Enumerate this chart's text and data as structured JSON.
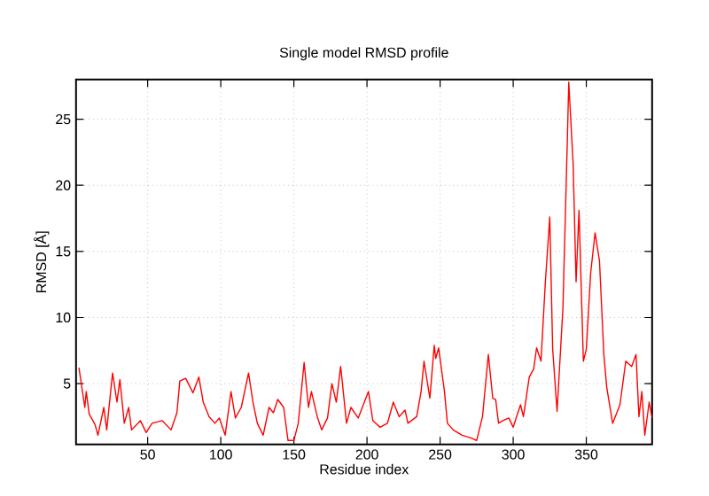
{
  "chart_data": {
    "type": "line",
    "title": "Single model RMSD profile",
    "xlabel": "Residue index",
    "ylabel": "RMSD [Å]",
    "xlim": [
      1,
      395
    ],
    "ylim": [
      0.4,
      28
    ],
    "xticks": [
      50,
      100,
      150,
      200,
      250,
      300,
      350
    ],
    "yticks": [
      5,
      10,
      15,
      20,
      25
    ],
    "grid": true,
    "series": [
      {
        "color": "#ff0000",
        "x": [
          3,
          7,
          8,
          10,
          14,
          16,
          20,
          22,
          26,
          29,
          31,
          34,
          37,
          39,
          45,
          49,
          53,
          60,
          66,
          70,
          72,
          76,
          81,
          85,
          88,
          92,
          96,
          99,
          103,
          107,
          110,
          114,
          119,
          122,
          125,
          129,
          133,
          136,
          139,
          143,
          146,
          150,
          153,
          157,
          160,
          162,
          166,
          169,
          173,
          176,
          179,
          182,
          186,
          189,
          194,
          201,
          204,
          209,
          214,
          218,
          222,
          226,
          228,
          234,
          237,
          239,
          243,
          246,
          247,
          249,
          253,
          255,
          259,
          265,
          271,
          275,
          279,
          283,
          286,
          288,
          290,
          293,
          297,
          300,
          302,
          305,
          307,
          311,
          314,
          316,
          319,
          322,
          325,
          327,
          330,
          334,
          337,
          338,
          341,
          343,
          345,
          348,
          350,
          353,
          356,
          359,
          362,
          364,
          368,
          373,
          377,
          381,
          384,
          386,
          388,
          390,
          393,
          395
        ],
        "values": [
          6.2,
          3.2,
          4.4,
          2.7,
          1.9,
          1.1,
          3.2,
          1.5,
          5.8,
          3.6,
          5.3,
          2,
          3.2,
          1.5,
          2.2,
          1.3,
          2,
          2.2,
          1.5,
          2.8,
          5.2,
          5.4,
          4.3,
          5.5,
          3.6,
          2.5,
          2,
          2.4,
          1.1,
          4.4,
          2.4,
          3.2,
          5.8,
          3.6,
          2,
          1.1,
          3.2,
          2.8,
          3.8,
          3.2,
          0.7,
          0.7,
          2,
          6.6,
          3.2,
          4.4,
          2.5,
          1.5,
          2.4,
          5,
          3.6,
          6.3,
          2,
          3.2,
          2.4,
          4.4,
          2.2,
          1.7,
          2,
          3.6,
          2.5,
          3,
          2,
          2.5,
          4.4,
          6.7,
          3.9,
          7.9,
          6.9,
          7.7,
          4.4,
          2,
          1.5,
          1.1,
          0.9,
          0.7,
          2.5,
          7.2,
          3.9,
          3.8,
          2,
          2.2,
          2.4,
          1.7,
          2.4,
          3.4,
          2.5,
          5.5,
          6.1,
          7.7,
          6.7,
          12.7,
          17.6,
          7.6,
          2.9,
          10.7,
          23.3,
          27.8,
          21.6,
          12.7,
          18.1,
          6.7,
          7.6,
          13.4,
          16.4,
          14.3,
          7.2,
          4.7,
          2,
          3.4,
          6.7,
          6.3,
          7.2,
          2.5,
          4.4,
          1.1,
          3.6,
          2.4
        ]
      }
    ]
  }
}
